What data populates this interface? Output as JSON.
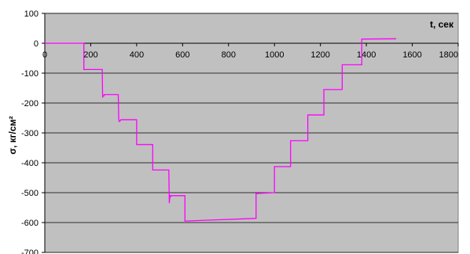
{
  "chart_data": {
    "type": "line",
    "xlabel": "t, сек",
    "ylabel": "σ, кг/см²",
    "xlim": [
      0,
      1800
    ],
    "ylim": [
      -700,
      100
    ],
    "x_ticks": [
      0,
      200,
      400,
      600,
      800,
      1000,
      1200,
      1400,
      1600,
      1800
    ],
    "y_ticks": [
      100,
      0,
      -100,
      -200,
      -300,
      -400,
      -500,
      -600,
      -700
    ],
    "grid": "horizontal",
    "legend": "none",
    "plot_background": "#c0c0c0",
    "series": [
      {
        "color": "#ff00ff",
        "x": [
          0,
          170,
          170,
          250,
          252,
          253,
          258,
          258,
          320,
          322,
          325,
          330,
          330,
          400,
          400,
          470,
          470,
          540,
          542,
          545,
          548,
          548,
          610,
          610,
          920,
          920,
          1000,
          1000,
          1070,
          1070,
          1145,
          1145,
          1215,
          1215,
          1295,
          1295,
          1380,
          1380,
          1530
        ],
        "y": [
          0,
          0,
          -88,
          -88,
          -182,
          -176,
          -176,
          -172,
          -172,
          -258,
          -262,
          -258,
          -256,
          -256,
          -339,
          -339,
          -424,
          -424,
          -535,
          -510,
          -512,
          -510,
          -510,
          -595,
          -586,
          -503,
          -500,
          -413,
          -413,
          -326,
          -326,
          -240,
          -240,
          -155,
          -155,
          -72,
          -72,
          14,
          15
        ]
      }
    ]
  }
}
